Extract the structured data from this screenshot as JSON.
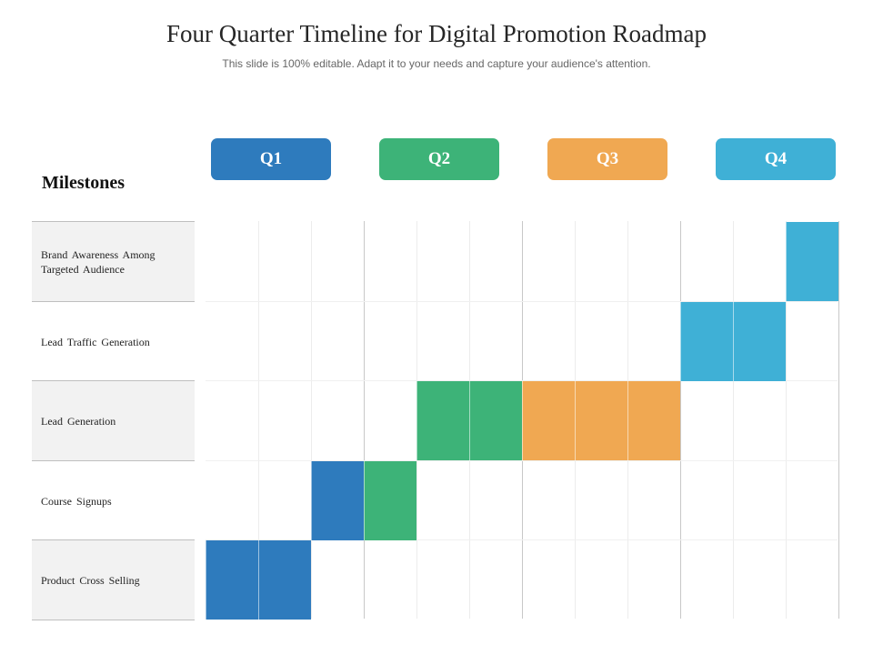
{
  "header": {
    "title": "Four Quarter Timeline for Digital Promotion Roadmap",
    "subtitle": "This slide is 100% editable. Adapt it to your needs and capture your audience's attention."
  },
  "quarters": [
    {
      "label": "Q1",
      "color": "#2e7bbd"
    },
    {
      "label": "Q2",
      "color": "#3db378"
    },
    {
      "label": "Q3",
      "color": "#f0a852"
    },
    {
      "label": "Q4",
      "color": "#3fb0d6"
    }
  ],
  "milestones_heading": "Milestones",
  "milestones": [
    {
      "label": "Brand Awareness Among Targeted Audience",
      "shaded": true
    },
    {
      "label": "Lead Traffic Generation",
      "shaded": false
    },
    {
      "label": "Lead Generation",
      "shaded": true
    },
    {
      "label": "Course Signups",
      "shaded": false
    },
    {
      "label": "Product Cross Selling",
      "shaded": true
    }
  ],
  "timeline": {
    "periods_per_quarter": 3,
    "bars": [
      {
        "milestone": 0,
        "start_period": 11,
        "periods": 1,
        "color": "#3fb0d6"
      },
      {
        "milestone": 1,
        "start_period": 9,
        "periods": 2,
        "color": "#3fb0d6"
      },
      {
        "milestone": 2,
        "start_period": 4,
        "periods": 2,
        "color": "#3db378"
      },
      {
        "milestone": 2,
        "start_period": 6,
        "periods": 3,
        "color": "#f0a852"
      },
      {
        "milestone": 3,
        "start_period": 2,
        "periods": 1,
        "color": "#2e7bbd"
      },
      {
        "milestone": 3,
        "start_period": 3,
        "periods": 1,
        "color": "#3db378"
      },
      {
        "milestone": 4,
        "start_period": 0,
        "periods": 2,
        "color": "#2e7bbd"
      }
    ]
  }
}
